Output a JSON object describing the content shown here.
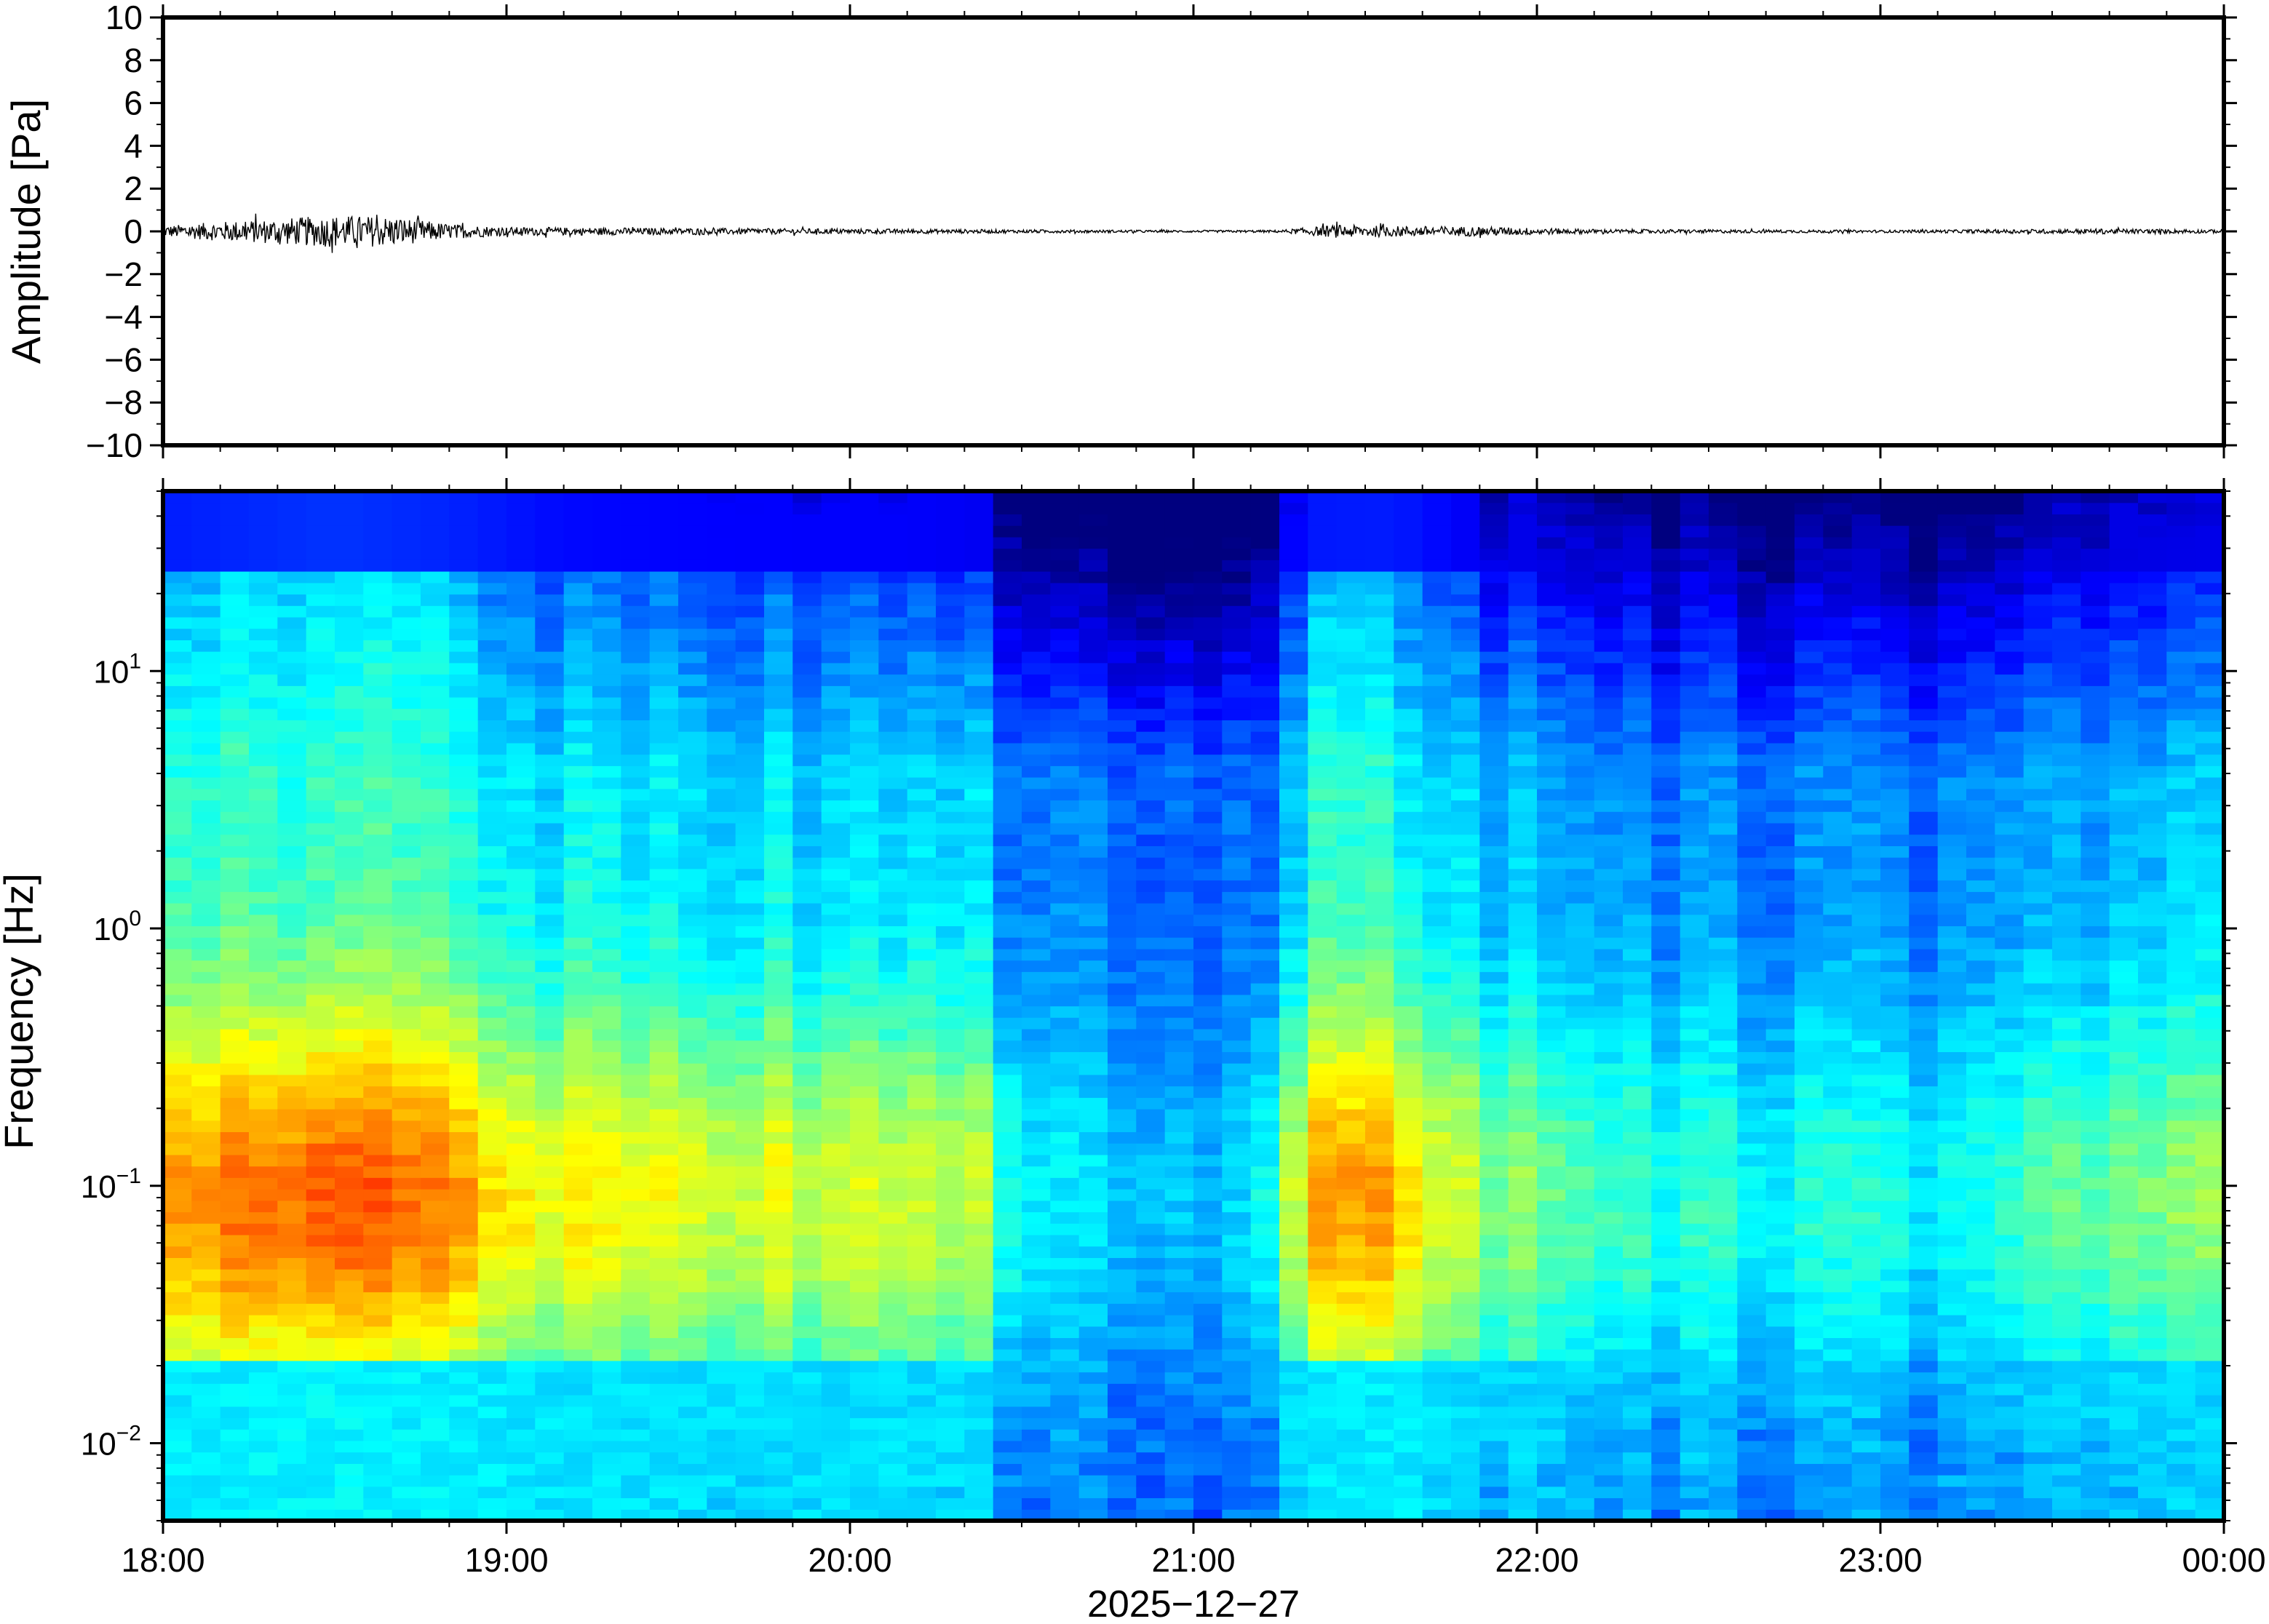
{
  "chart_data": [
    {
      "type": "line",
      "ylabel": "Amplitude [Pa]",
      "ylim": [
        -10,
        10
      ],
      "y_ticks": [
        {
          "value": 10,
          "label": "10"
        },
        {
          "value": 8,
          "label": "8"
        },
        {
          "value": 6,
          "label": "6"
        },
        {
          "value": 4,
          "label": "4"
        },
        {
          "value": 2,
          "label": "2"
        },
        {
          "value": 0,
          "label": "0"
        },
        {
          "value": -2,
          "label": "−2"
        },
        {
          "value": -4,
          "label": "−4"
        },
        {
          "value": -6,
          "label": "−6"
        },
        {
          "value": -8,
          "label": "−8"
        },
        {
          "value": -10,
          "label": "−10"
        }
      ],
      "xlim": [
        "18:00",
        "00:00"
      ],
      "grid": false,
      "series_color": "#000000",
      "envelope": [
        {
          "t": "18:00",
          "amp": 0.25
        },
        {
          "t": "18:10",
          "amp": 0.45
        },
        {
          "t": "18:20",
          "amp": 0.6
        },
        {
          "t": "18:30",
          "amp": 0.75
        },
        {
          "t": "18:40",
          "amp": 0.7
        },
        {
          "t": "18:50",
          "amp": 0.35
        },
        {
          "t": "19:00",
          "amp": 0.2
        },
        {
          "t": "19:30",
          "amp": 0.15
        },
        {
          "t": "20:00",
          "amp": 0.12
        },
        {
          "t": "20:30",
          "amp": 0.08
        },
        {
          "t": "21:00",
          "amp": 0.05
        },
        {
          "t": "21:15",
          "amp": 0.06
        },
        {
          "t": "21:25",
          "amp": 0.3
        },
        {
          "t": "21:35",
          "amp": 0.25
        },
        {
          "t": "21:50",
          "amp": 0.22
        },
        {
          "t": "22:10",
          "amp": 0.1
        },
        {
          "t": "23:00",
          "amp": 0.06
        },
        {
          "t": "23:40",
          "amp": 0.12
        },
        {
          "t": "00:00",
          "amp": 0.08
        }
      ]
    },
    {
      "type": "heatmap",
      "ylabel": "Frequency [Hz]",
      "xlabel": "2025−12−27",
      "yscale": "log",
      "ylim": [
        0.005,
        50
      ],
      "y_ticks": [
        {
          "value": 10,
          "base": "10",
          "exp": "1"
        },
        {
          "value": 1,
          "base": "10",
          "exp": "0"
        },
        {
          "value": 0.1,
          "base": "10",
          "exp": "−1"
        },
        {
          "value": 0.01,
          "base": "10",
          "exp": "−2"
        }
      ],
      "x_ticks": [
        "18:00",
        "19:00",
        "20:00",
        "21:00",
        "22:00",
        "23:00",
        "00:00"
      ],
      "xlim": [
        "18:00",
        "00:00"
      ],
      "colormap": [
        "#00007f",
        "#0000ff",
        "#0080ff",
        "#00ffff",
        "#80ff80",
        "#ffff00",
        "#ff8000",
        "#ff0000"
      ],
      "time_profile": [
        {
          "t": "18:00",
          "level": 0.85
        },
        {
          "t": "18:30",
          "level": 1.0
        },
        {
          "t": "18:50",
          "level": 0.9
        },
        {
          "t": "19:10",
          "level": 0.72
        },
        {
          "t": "19:40",
          "level": 0.68
        },
        {
          "t": "20:10",
          "level": 0.66
        },
        {
          "t": "20:25",
          "level": 0.6
        },
        {
          "t": "20:30",
          "level": 0.32
        },
        {
          "t": "21:00",
          "level": 0.25
        },
        {
          "t": "21:10",
          "level": 0.3
        },
        {
          "t": "21:20",
          "level": 0.82
        },
        {
          "t": "21:35",
          "level": 0.85
        },
        {
          "t": "21:50",
          "level": 0.6
        },
        {
          "t": "22:15",
          "level": 0.45
        },
        {
          "t": "22:45",
          "level": 0.4
        },
        {
          "t": "23:15",
          "level": 0.35
        },
        {
          "t": "23:30",
          "level": 0.5
        },
        {
          "t": "00:00",
          "level": 0.55
        }
      ]
    }
  ]
}
